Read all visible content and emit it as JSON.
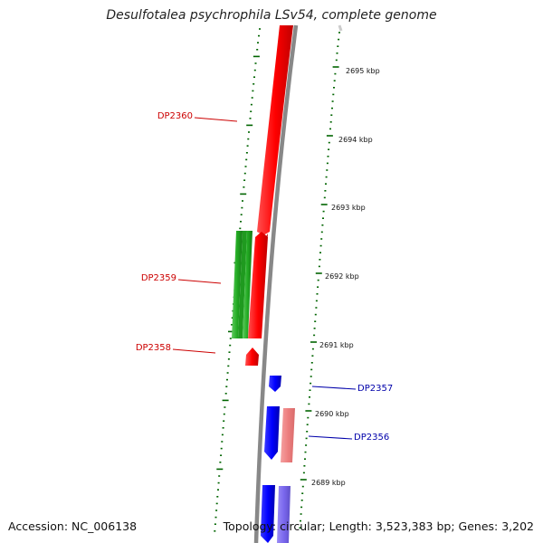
{
  "title": "Desulfotalea psychrophila LSv54, complete genome",
  "footer": {
    "accession": "Accession: NC_006138",
    "summary": "Topology: circular; Length: 3,523,383 bp; Genes: 3,202"
  },
  "colors": {
    "forward_cds": "#ff0000",
    "forward_other": "#f08080",
    "reverse_cds": "#0000ff",
    "reverse_other": "#7b68ee",
    "rna": "#22aa22",
    "backbone": "#888888",
    "ticks": "#006400",
    "forward_label": "#cc0000",
    "reverse_label": "#0000aa"
  },
  "scale_labels": [
    "2695 kbp",
    "2694 kbp",
    "2693 kbp",
    "2692 kbp",
    "2691 kbp",
    "2690 kbp",
    "2689 kbp"
  ],
  "genes": [
    {
      "label": "DP2360",
      "strand": "forward"
    },
    {
      "label": "DP2359",
      "strand": "forward"
    },
    {
      "label": "DP2358",
      "strand": "forward"
    },
    {
      "label": "DP2357",
      "strand": "reverse"
    },
    {
      "label": "DP2356",
      "strand": "reverse"
    }
  ]
}
